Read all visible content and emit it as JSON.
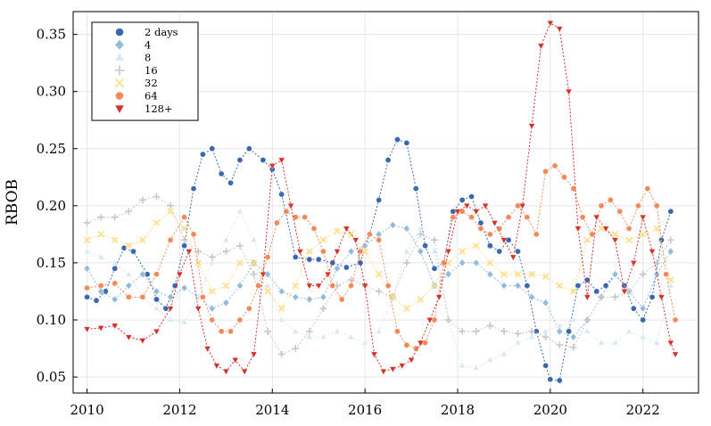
{
  "chart_data": {
    "type": "scatter",
    "title": "",
    "xlabel": "",
    "ylabel": "RBOB",
    "xlim": [
      2009.7,
      2023.2
    ],
    "ylim": [
      0.036,
      0.37
    ],
    "xticks": [
      2010,
      2012,
      2014,
      2016,
      2018,
      2020,
      2022
    ],
    "xtick_labels": [
      "2010",
      "2012",
      "2014",
      "2016",
      "2018",
      "2020",
      "2022"
    ],
    "yticks": [
      0.05,
      0.1,
      0.15,
      0.2,
      0.25,
      0.3,
      0.35
    ],
    "ytick_labels": [
      "0.05",
      "0.10",
      "0.15",
      "0.20",
      "0.25",
      "0.30",
      "0.35"
    ],
    "grid": true,
    "legend_position": "top-left",
    "series": [
      {
        "name": "2 days",
        "color": "#3a68b0",
        "marker": "circle",
        "x": [
          2010.0,
          2010.2,
          2010.4,
          2010.6,
          2010.8,
          2011.0,
          2011.3,
          2011.5,
          2011.7,
          2011.9,
          2012.1,
          2012.3,
          2012.5,
          2012.7,
          2012.9,
          2013.1,
          2013.3,
          2013.5,
          2013.8,
          2014.0,
          2014.2,
          2014.5,
          2014.8,
          2015.0,
          2015.3,
          2015.6,
          2015.9,
          2016.1,
          2016.3,
          2016.5,
          2016.7,
          2016.9,
          2017.1,
          2017.3,
          2017.5,
          2017.7,
          2017.9,
          2018.1,
          2018.3,
          2018.5,
          2018.7,
          2018.9,
          2019.1,
          2019.3,
          2019.5,
          2019.7,
          2019.9,
          2020.0,
          2020.2,
          2020.4,
          2020.6,
          2020.8,
          2021.0,
          2021.2,
          2021.4,
          2021.6,
          2021.8,
          2022.0,
          2022.2,
          2022.4,
          2022.6
        ],
        "y": [
          0.12,
          0.117,
          0.125,
          0.145,
          0.163,
          0.16,
          0.14,
          0.118,
          0.11,
          0.13,
          0.165,
          0.215,
          0.245,
          0.25,
          0.228,
          0.22,
          0.24,
          0.25,
          0.24,
          0.232,
          0.21,
          0.155,
          0.153,
          0.153,
          0.15,
          0.146,
          0.15,
          0.175,
          0.205,
          0.24,
          0.258,
          0.255,
          0.215,
          0.165,
          0.145,
          0.15,
          0.195,
          0.205,
          0.208,
          0.185,
          0.165,
          0.16,
          0.17,
          0.16,
          0.13,
          0.09,
          0.06,
          0.048,
          0.047,
          0.09,
          0.13,
          0.135,
          0.125,
          0.13,
          0.14,
          0.13,
          0.11,
          0.1,
          0.12,
          0.17,
          0.195
        ]
      },
      {
        "name": "4",
        "color": "#93bcdc",
        "marker": "diamond",
        "x": [
          2010.0,
          2010.3,
          2010.6,
          2010.9,
          2011.2,
          2011.5,
          2011.8,
          2012.1,
          2012.4,
          2012.7,
          2013.0,
          2013.3,
          2013.6,
          2013.9,
          2014.2,
          2014.5,
          2014.8,
          2015.1,
          2015.4,
          2015.7,
          2016.0,
          2016.3,
          2016.6,
          2016.9,
          2017.2,
          2017.5,
          2017.8,
          2018.1,
          2018.4,
          2018.7,
          2019.0,
          2019.3,
          2019.6,
          2019.9,
          2020.2,
          2020.5,
          2020.8,
          2021.1,
          2021.4,
          2021.7,
          2022.0,
          2022.3,
          2022.6
        ],
        "y": [
          0.145,
          0.125,
          0.118,
          0.13,
          0.14,
          0.125,
          0.12,
          0.128,
          0.12,
          0.11,
          0.115,
          0.13,
          0.15,
          0.14,
          0.125,
          0.12,
          0.118,
          0.12,
          0.145,
          0.16,
          0.165,
          0.175,
          0.183,
          0.18,
          0.16,
          0.13,
          0.14,
          0.15,
          0.15,
          0.14,
          0.13,
          0.13,
          0.12,
          0.115,
          0.09,
          0.085,
          0.1,
          0.12,
          0.14,
          0.125,
          0.11,
          0.14,
          0.16
        ]
      },
      {
        "name": "8",
        "color": "#d7eaf3",
        "marker": "triangle-up",
        "x": [
          2010.0,
          2010.3,
          2010.6,
          2010.9,
          2011.2,
          2011.5,
          2011.8,
          2012.1,
          2012.4,
          2012.7,
          2013.0,
          2013.3,
          2013.6,
          2013.9,
          2014.2,
          2014.5,
          2014.8,
          2015.1,
          2015.4,
          2015.7,
          2016.0,
          2016.3,
          2016.6,
          2016.9,
          2017.2,
          2017.5,
          2017.8,
          2018.1,
          2018.4,
          2018.7,
          2019.0,
          2019.3,
          2019.6,
          2019.9,
          2020.2,
          2020.5,
          2020.8,
          2021.1,
          2021.4,
          2021.7,
          2022.0,
          2022.3,
          2022.6
        ],
        "y": [
          0.16,
          0.155,
          0.15,
          0.14,
          0.12,
          0.11,
          0.1,
          0.098,
          0.12,
          0.15,
          0.17,
          0.195,
          0.17,
          0.13,
          0.1,
          0.09,
          0.085,
          0.085,
          0.09,
          0.085,
          0.08,
          0.09,
          0.12,
          0.16,
          0.18,
          0.16,
          0.1,
          0.06,
          0.058,
          0.065,
          0.07,
          0.08,
          0.085,
          0.09,
          0.095,
          0.1,
          0.09,
          0.08,
          0.08,
          0.09,
          0.085,
          0.08,
          0.13
        ]
      },
      {
        "name": "16",
        "color": "#c8c8c8",
        "marker": "cross",
        "x": [
          2010.0,
          2010.3,
          2010.6,
          2010.9,
          2011.2,
          2011.5,
          2011.8,
          2012.1,
          2012.4,
          2012.7,
          2013.0,
          2013.3,
          2013.6,
          2013.9,
          2014.2,
          2014.5,
          2014.8,
          2015.1,
          2015.4,
          2015.7,
          2016.0,
          2016.3,
          2016.6,
          2016.9,
          2017.2,
          2017.5,
          2017.8,
          2018.1,
          2018.4,
          2018.7,
          2019.0,
          2019.3,
          2019.6,
          2019.9,
          2020.2,
          2020.5,
          2020.8,
          2021.1,
          2021.4,
          2021.7,
          2022.0,
          2022.3,
          2022.6
        ],
        "y": [
          0.185,
          0.19,
          0.19,
          0.195,
          0.205,
          0.208,
          0.2,
          0.17,
          0.16,
          0.155,
          0.16,
          0.165,
          0.14,
          0.09,
          0.07,
          0.075,
          0.09,
          0.11,
          0.13,
          0.135,
          0.13,
          0.125,
          0.12,
          0.15,
          0.175,
          0.17,
          0.1,
          0.09,
          0.09,
          0.095,
          0.09,
          0.088,
          0.09,
          0.085,
          0.078,
          0.076,
          0.1,
          0.12,
          0.12,
          0.125,
          0.14,
          0.15,
          0.17
        ]
      },
      {
        "name": "32",
        "color": "#fddf8e",
        "marker": "x",
        "x": [
          2010.0,
          2010.3,
          2010.6,
          2010.9,
          2011.2,
          2011.5,
          2011.8,
          2012.1,
          2012.4,
          2012.7,
          2013.0,
          2013.3,
          2013.6,
          2013.9,
          2014.2,
          2014.5,
          2014.8,
          2015.1,
          2015.4,
          2015.7,
          2016.0,
          2016.3,
          2016.6,
          2016.9,
          2017.2,
          2017.5,
          2017.8,
          2018.1,
          2018.4,
          2018.7,
          2019.0,
          2019.3,
          2019.6,
          2019.9,
          2020.2,
          2020.5,
          2020.8,
          2021.1,
          2021.4,
          2021.7,
          2022.0,
          2022.3,
          2022.6
        ],
        "y": [
          0.17,
          0.175,
          0.17,
          0.165,
          0.17,
          0.185,
          0.195,
          0.18,
          0.15,
          0.125,
          0.13,
          0.15,
          0.15,
          0.125,
          0.11,
          0.13,
          0.16,
          0.17,
          0.178,
          0.175,
          0.16,
          0.14,
          0.12,
          0.11,
          0.118,
          0.13,
          0.15,
          0.16,
          0.165,
          0.15,
          0.14,
          0.14,
          0.14,
          0.138,
          0.13,
          0.125,
          0.17,
          0.18,
          0.175,
          0.17,
          0.175,
          0.18,
          0.135
        ]
      },
      {
        "name": "64",
        "color": "#f48a5a",
        "marker": "circle",
        "x": [
          2010.0,
          2010.3,
          2010.6,
          2010.9,
          2011.2,
          2011.5,
          2011.8,
          2012.1,
          2012.3,
          2012.5,
          2012.7,
          2012.9,
          2013.1,
          2013.3,
          2013.5,
          2013.7,
          2013.9,
          2014.1,
          2014.3,
          2014.5,
          2014.7,
          2014.9,
          2015.1,
          2015.3,
          2015.5,
          2015.7,
          2015.9,
          2016.1,
          2016.3,
          2016.5,
          2016.7,
          2016.9,
          2017.1,
          2017.3,
          2017.5,
          2017.7,
          2017.9,
          2018.1,
          2018.3,
          2018.5,
          2018.7,
          2018.9,
          2019.1,
          2019.3,
          2019.5,
          2019.7,
          2019.9,
          2020.1,
          2020.3,
          2020.5,
          2020.7,
          2020.9,
          2021.1,
          2021.3,
          2021.5,
          2021.7,
          2021.9,
          2022.1,
          2022.3,
          2022.5,
          2022.7
        ],
        "y": [
          0.128,
          0.13,
          0.132,
          0.12,
          0.12,
          0.14,
          0.17,
          0.19,
          0.175,
          0.12,
          0.1,
          0.09,
          0.09,
          0.1,
          0.11,
          0.13,
          0.155,
          0.185,
          0.195,
          0.19,
          0.19,
          0.18,
          0.16,
          0.13,
          0.118,
          0.13,
          0.16,
          0.175,
          0.17,
          0.13,
          0.09,
          0.078,
          0.075,
          0.08,
          0.1,
          0.15,
          0.19,
          0.195,
          0.19,
          0.18,
          0.175,
          0.18,
          0.19,
          0.2,
          0.19,
          0.175,
          0.23,
          0.235,
          0.225,
          0.215,
          0.19,
          0.175,
          0.2,
          0.205,
          0.195,
          0.18,
          0.2,
          0.215,
          0.2,
          0.14,
          0.1
        ]
      },
      {
        "name": "128+",
        "color": "#d73027",
        "marker": "triangle-down",
        "x": [
          2010.0,
          2010.3,
          2010.6,
          2010.9,
          2011.2,
          2011.5,
          2011.8,
          2012.0,
          2012.2,
          2012.4,
          2012.6,
          2012.8,
          2013.0,
          2013.2,
          2013.4,
          2013.6,
          2013.8,
          2014.0,
          2014.2,
          2014.4,
          2014.6,
          2014.8,
          2015.0,
          2015.2,
          2015.4,
          2015.6,
          2015.8,
          2016.0,
          2016.2,
          2016.4,
          2016.6,
          2016.8,
          2017.0,
          2017.2,
          2017.4,
          2017.6,
          2017.8,
          2018.0,
          2018.2,
          2018.4,
          2018.6,
          2018.8,
          2019.0,
          2019.2,
          2019.4,
          2019.6,
          2019.8,
          2020.0,
          2020.2,
          2020.4,
          2020.6,
          2020.8,
          2021.0,
          2021.2,
          2021.4,
          2021.6,
          2021.8,
          2022.0,
          2022.2,
          2022.4,
          2022.6,
          2022.7
        ],
        "y": [
          0.092,
          0.093,
          0.095,
          0.085,
          0.082,
          0.09,
          0.11,
          0.14,
          0.16,
          0.11,
          0.075,
          0.06,
          0.055,
          0.065,
          0.055,
          0.07,
          0.14,
          0.235,
          0.24,
          0.2,
          0.16,
          0.13,
          0.13,
          0.14,
          0.16,
          0.18,
          0.17,
          0.13,
          0.07,
          0.055,
          0.057,
          0.06,
          0.065,
          0.08,
          0.1,
          0.12,
          0.16,
          0.195,
          0.2,
          0.195,
          0.2,
          0.185,
          0.17,
          0.155,
          0.2,
          0.27,
          0.34,
          0.36,
          0.355,
          0.3,
          0.18,
          0.12,
          0.19,
          0.18,
          0.17,
          0.125,
          0.15,
          0.19,
          0.16,
          0.12,
          0.08,
          0.07
        ]
      }
    ]
  }
}
